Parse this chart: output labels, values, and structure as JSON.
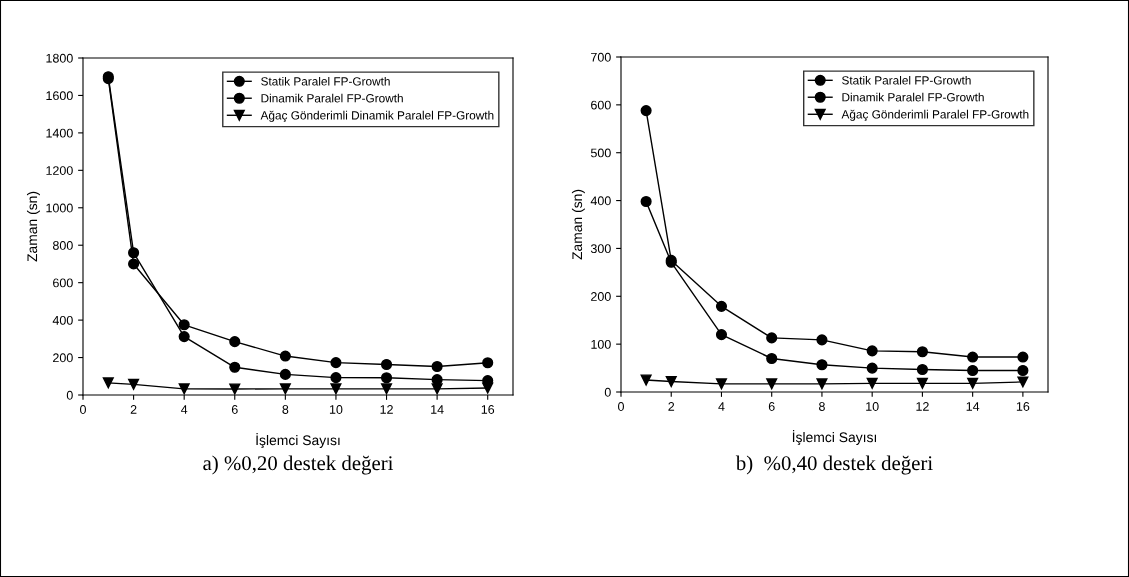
{
  "chart_data": [
    {
      "type": "line",
      "xlabel": "İşlemci Sayısı",
      "ylabel": "Zaman (sn)",
      "x": [
        1,
        2,
        4,
        6,
        8,
        10,
        12,
        14,
        16
      ],
      "xlim": [
        0,
        17
      ],
      "xticks": [
        0,
        2,
        4,
        6,
        8,
        10,
        12,
        14,
        16
      ],
      "ylim": [
        0,
        1800
      ],
      "yticks": [
        0,
        200,
        400,
        600,
        800,
        1000,
        1200,
        1400,
        1600,
        1800
      ],
      "grid": false,
      "legend": "top right",
      "line_style": "solid",
      "annotations": [
        "a) %0,20 destek değeri"
      ],
      "series": [
        {
          "name": "Statik Paralel FP-Growth",
          "color": "#000000",
          "marker": "circle",
          "values": [
            1690,
            700,
            375,
            285,
            208,
            173,
            163,
            152,
            172
          ]
        },
        {
          "name": "Dinamik Paralel FP-Growth",
          "color": "#000000",
          "marker": "circle",
          "values": [
            1700,
            760,
            312,
            148,
            110,
            93,
            92,
            82,
            77
          ]
        },
        {
          "name": "Ağaç Gönderimli Dinamik Paralel FP-Growth",
          "color": "#000000",
          "marker": "triangle",
          "values": [
            65,
            57,
            33,
            32,
            33,
            33,
            33,
            33,
            37
          ]
        }
      ]
    },
    {
      "type": "line",
      "xlabel": "İşlemci Sayısı",
      "ylabel": "Zaman (sn)",
      "x": [
        1,
        2,
        4,
        6,
        8,
        10,
        12,
        14,
        16
      ],
      "xlim": [
        0,
        17
      ],
      "xticks": [
        0,
        2,
        4,
        6,
        8,
        10,
        12,
        14,
        16
      ],
      "ylim": [
        0,
        700
      ],
      "yticks": [
        0,
        100,
        200,
        300,
        400,
        500,
        600,
        700
      ],
      "grid": false,
      "legend": "top right",
      "line_style": "solid",
      "annotations": [
        "b)  %0,40 destek değeri"
      ],
      "series": [
        {
          "name": "Statik Paralel FP-Growth",
          "color": "#000000",
          "marker": "circle",
          "values": [
            588,
            275,
            179,
            113,
            109,
            86,
            84,
            73,
            73
          ]
        },
        {
          "name": "Dinamik Paralel FP-Growth",
          "color": "#000000",
          "marker": "circle",
          "values": [
            398,
            271,
            120,
            70,
            57,
            50,
            47,
            45,
            45
          ]
        },
        {
          "name": "Ağaç Gönderimli Paralel FP-Growth",
          "color": "#000000",
          "marker": "triangle",
          "values": [
            25,
            22,
            17,
            17,
            17,
            18,
            18,
            18,
            21
          ]
        }
      ]
    }
  ]
}
